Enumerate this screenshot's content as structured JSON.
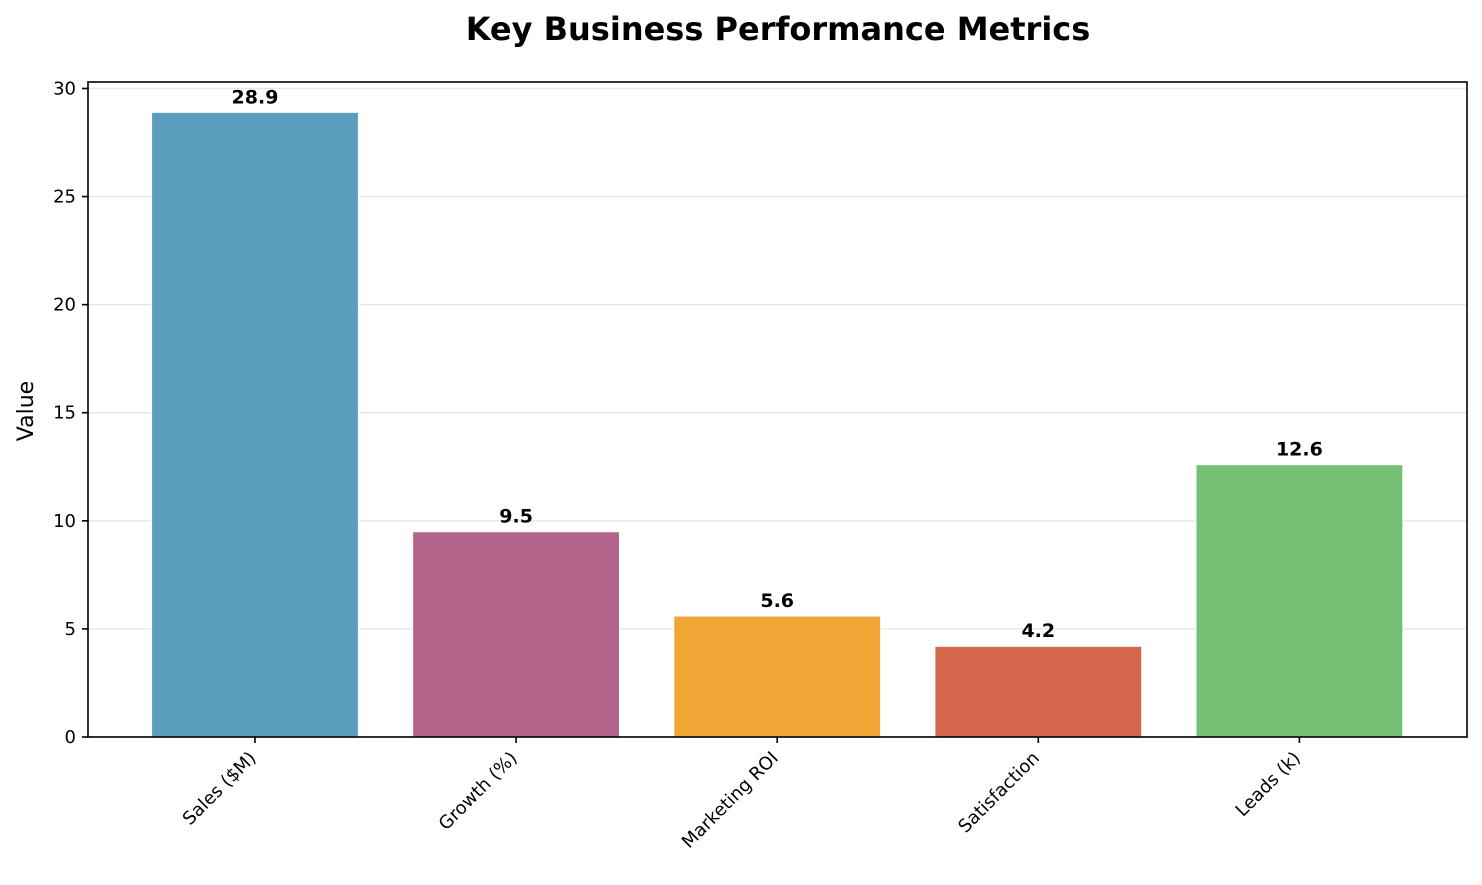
{
  "chart_data": {
    "type": "bar",
    "title": "Key Business Performance Metrics",
    "xlabel": "",
    "ylabel": "Value",
    "categories": [
      "Sales ($M)",
      "Growth (%)",
      "Marketing ROI",
      "Satisfaction",
      "Leads (k)"
    ],
    "values": [
      28.9,
      9.5,
      5.6,
      4.2,
      12.6
    ],
    "value_labels": [
      "28.9",
      "9.5",
      "5.6",
      "4.2",
      "12.6"
    ],
    "colors": [
      "#5a9dbd",
      "#b3648b",
      "#f0a534",
      "#d4664c",
      "#73bf73"
    ],
    "ylim": [
      0,
      30.3
    ],
    "yticks": [
      0,
      5,
      10,
      15,
      20,
      25,
      30
    ],
    "ytick_labels": [
      "0",
      "5",
      "10",
      "15",
      "20",
      "25",
      "30"
    ],
    "grid": "y",
    "legend": "none"
  }
}
